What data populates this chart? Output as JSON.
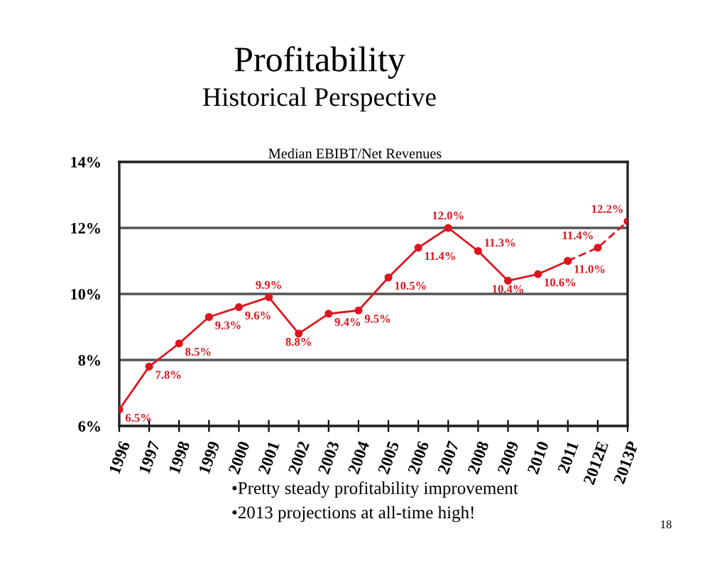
{
  "chart_data": {
    "type": "line",
    "title": "Profitability",
    "subtitle": "Historical Perspective",
    "annotations": [
      "Median EBIBT/Net Revenues",
      "•Pretty steady profitability improvement",
      "•2013 projections at all-time high!",
      "18"
    ],
    "categories": [
      "1996",
      "1997",
      "1998",
      "1999",
      "2000",
      "2001",
      "2002",
      "2003",
      "2004",
      "2005",
      "2006",
      "2007",
      "2008",
      "2009",
      "2010",
      "2011",
      "2012E",
      "2013P"
    ],
    "series": [
      {
        "color": "#e0141e",
        "line_style": "solid",
        "values": [
          6.5,
          7.8,
          8.5,
          9.3,
          9.6,
          9.9,
          8.8,
          9.4,
          9.5,
          10.5,
          11.4,
          12.0,
          11.3,
          10.4,
          10.6,
          11.0,
          null,
          null
        ],
        "value_labels": [
          "6.5%",
          "7.8%",
          "8.5%",
          "9.3%",
          "9.6%",
          "9.9%",
          "8.8%",
          "9.4%",
          "9.5%",
          "10.5%",
          "11.4%",
          "12.0%",
          "11.3%",
          "10.4%",
          "10.6%",
          "11.0%",
          null,
          null
        ]
      },
      {
        "color": "#e0141e",
        "line_style": "dashed",
        "values": [
          null,
          null,
          null,
          null,
          null,
          null,
          null,
          null,
          null,
          null,
          null,
          null,
          null,
          null,
          null,
          11.0,
          11.4,
          12.2
        ],
        "value_labels": [
          null,
          null,
          null,
          null,
          null,
          null,
          null,
          null,
          null,
          null,
          null,
          null,
          null,
          null,
          null,
          null,
          "11.4%",
          "12.2%"
        ]
      }
    ],
    "ylim": [
      6,
      14
    ],
    "yticks": [
      {
        "value": 6,
        "label": "6%"
      },
      {
        "value": 8,
        "label": "8%"
      },
      {
        "value": 10,
        "label": "10%"
      },
      {
        "value": 12,
        "label": "12%"
      },
      {
        "value": 14,
        "label": "14%"
      }
    ],
    "grid": "y",
    "marker": "circle"
  }
}
